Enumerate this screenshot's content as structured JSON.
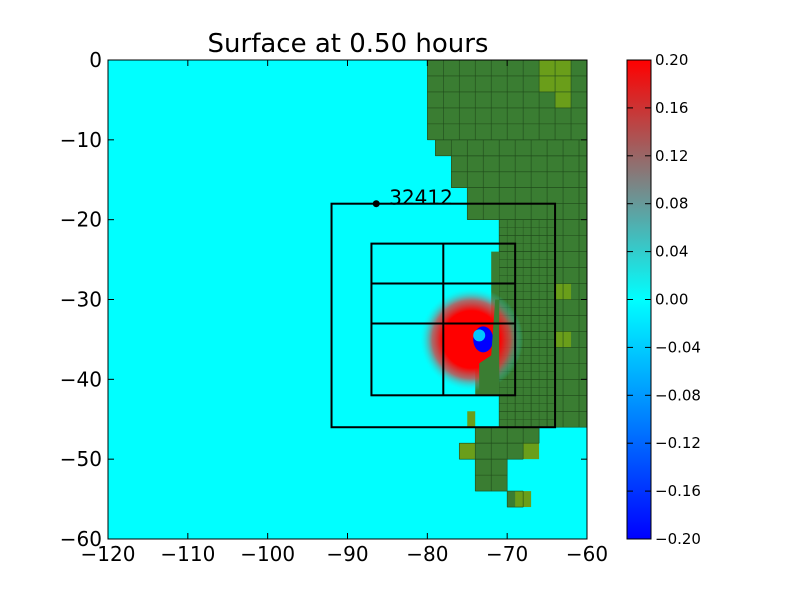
{
  "chart_data": {
    "type": "heatmap",
    "title": "Surface at 0.50 hours",
    "xlim": [
      -120,
      -60
    ],
    "ylim": [
      -60,
      0
    ],
    "x_ticks": [
      -120,
      -110,
      -100,
      -90,
      -80,
      -70,
      -60
    ],
    "y_ticks": [
      0,
      -10,
      -20,
      -30,
      -40,
      -50,
      -60
    ],
    "x_tick_labels": [
      "−120",
      "−110",
      "−100",
      "−90",
      "−80",
      "−70",
      "−60"
    ],
    "y_tick_labels": [
      "0",
      "−10",
      "−20",
      "−30",
      "−40",
      "−50",
      "−60"
    ],
    "colorbar": {
      "min": -0.2,
      "max": 0.2,
      "ticks": [
        0.2,
        0.16,
        0.12,
        0.08,
        0.04,
        0.0,
        -0.04,
        -0.08,
        -0.12,
        -0.16,
        -0.2
      ],
      "tick_labels": [
        "0.20",
        "0.16",
        "0.12",
        "0.08",
        "0.04",
        "0.00",
        "−0.04",
        "−0.08",
        "−0.12",
        "−0.16",
        "−0.20"
      ],
      "colors": [
        "#0000ff",
        "#00ffff",
        "#ff0000"
      ]
    },
    "colors": {
      "water": "#00ffff",
      "land": "#3a7d32",
      "land_high": "#6a9e1a",
      "wave_positive": "#ff0000",
      "wave_negative": "#0000ff"
    },
    "gauge": {
      "label": "32412",
      "x": -86.4,
      "y": -18.0
    },
    "outer_box": [
      -92,
      -64,
      -46,
      -18
    ],
    "inner_box": [
      -87,
      -69,
      -42,
      -23
    ],
    "inner_grid_x": [
      -78
    ],
    "inner_grid_y": [
      -28,
      -33
    ],
    "wave_center": [
      -73,
      -35
    ]
  }
}
